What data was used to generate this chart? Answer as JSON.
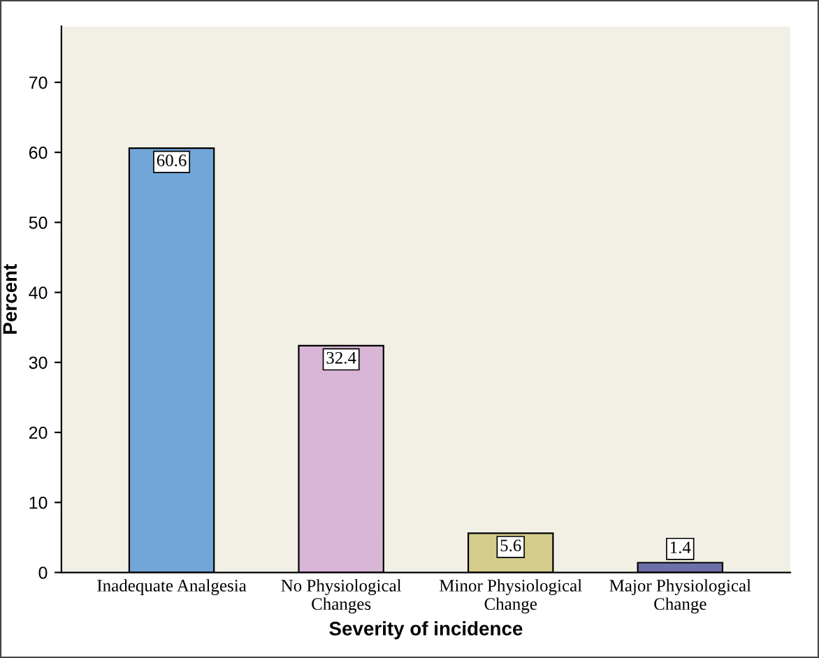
{
  "chart_data": {
    "type": "bar",
    "xlabel": "Severity of incidence",
    "ylabel": "Percent",
    "categories": [
      "Inadequate Analgesia",
      "No Physiological\nChanges",
      "Minor Physiological\nChange",
      "Major Physiological\nChange"
    ],
    "values": [
      60.6,
      32.4,
      5.6,
      1.4
    ],
    "colors": [
      "#72a6d9",
      "#d9b5d8",
      "#d3cc8c",
      "#6d70a9"
    ],
    "ylim": [
      0,
      78
    ],
    "yticks": [
      0,
      10,
      20,
      30,
      40,
      50,
      60,
      70
    ],
    "data_labels": true,
    "grid": false,
    "legend": false
  }
}
